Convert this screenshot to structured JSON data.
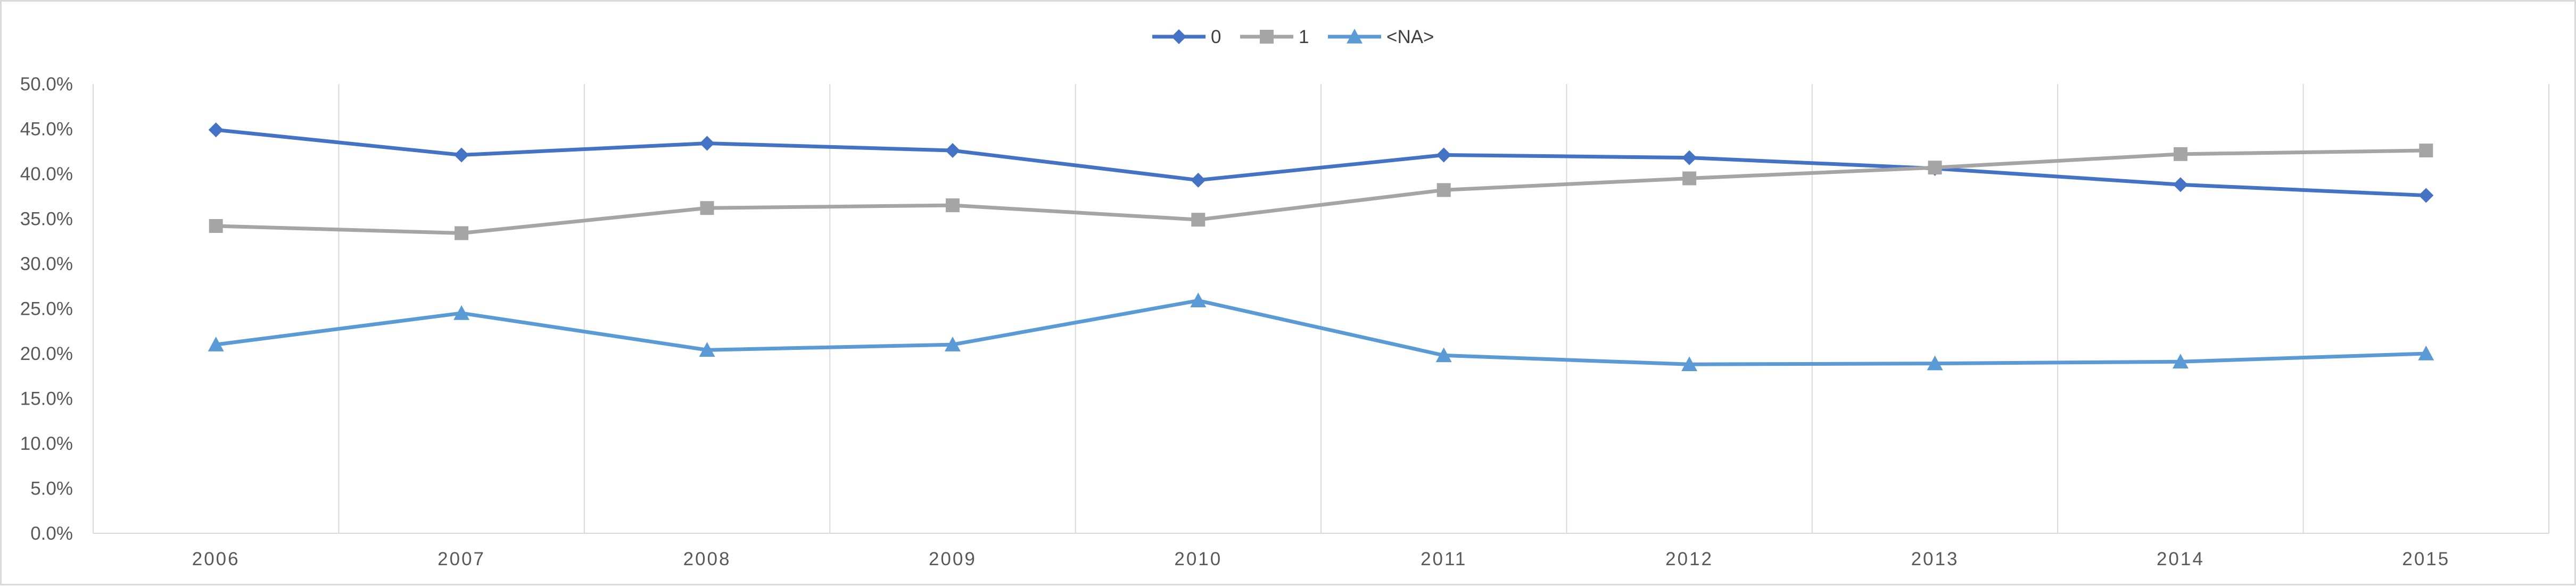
{
  "chart_data": {
    "type": "line",
    "title": "",
    "xlabel": "",
    "ylabel": "",
    "categories": [
      "2006",
      "2007",
      "2008",
      "2009",
      "2010",
      "2011",
      "2012",
      "2013",
      "2014",
      "2015"
    ],
    "ylim": [
      0,
      0.5
    ],
    "y_tick_values": [
      0,
      0.05,
      0.1,
      0.15,
      0.2,
      0.25,
      0.3,
      0.35,
      0.4,
      0.45,
      0.5
    ],
    "y_tick_labels": [
      "0.0%",
      "5.0%",
      "10.0%",
      "15.0%",
      "20.0%",
      "25.0%",
      "30.0%",
      "35.0%",
      "40.0%",
      "45.0%",
      "50.0%"
    ],
    "grid": "vertical",
    "legend_position": "top-center",
    "series": [
      {
        "name": "0",
        "color": "#4472c4",
        "marker": "diamond",
        "values": [
          0.449,
          0.421,
          0.434,
          0.426,
          0.393,
          0.421,
          0.418,
          0.406,
          0.388,
          0.376
        ]
      },
      {
        "name": "1",
        "color": "#a5a5a5",
        "marker": "square",
        "values": [
          0.342,
          0.334,
          0.362,
          0.365,
          0.349,
          0.382,
          0.395,
          0.407,
          0.422,
          0.426
        ]
      },
      {
        "name": "<NA>",
        "color": "#5b9bd5",
        "marker": "triangle",
        "values": [
          0.21,
          0.245,
          0.204,
          0.21,
          0.259,
          0.198,
          0.188,
          0.189,
          0.191,
          0.2
        ]
      }
    ]
  }
}
